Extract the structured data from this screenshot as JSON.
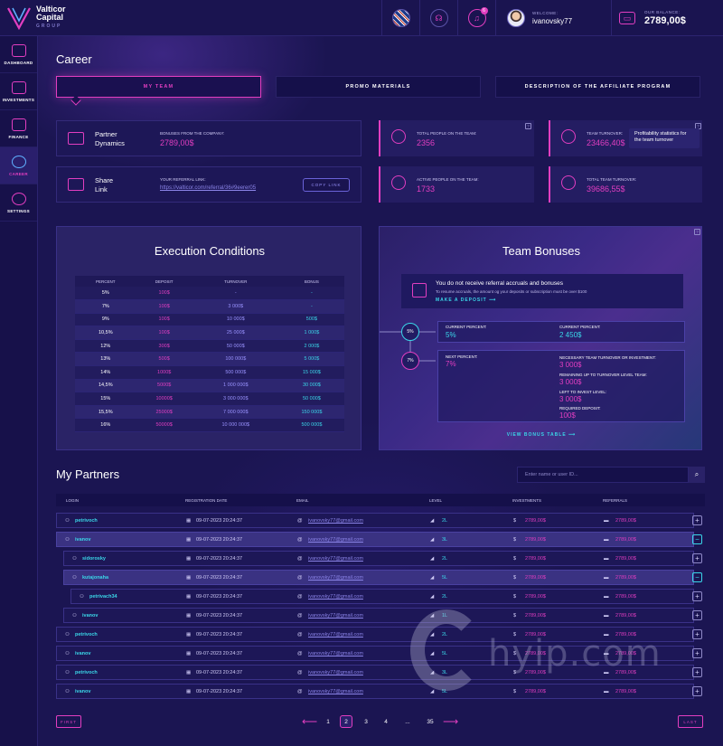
{
  "brand": {
    "name_line1": "Valticor",
    "name_line2": "Capital",
    "name_sub": "GROUP"
  },
  "topbar": {
    "notifications_count": "6",
    "welcome_label": "WELCOME:",
    "username": "ivanovsky77",
    "balance_label": "OUR BALANCE:",
    "balance_value": "2789,00$"
  },
  "sidebar": {
    "items": [
      {
        "label": "DASHBOARD",
        "icon": "dashboard-icon"
      },
      {
        "label": "INVESTMENTS",
        "icon": "investments-icon"
      },
      {
        "label": "FINANCE",
        "icon": "wallet-icon"
      },
      {
        "label": "CAREER",
        "icon": "career-icon",
        "active": true
      },
      {
        "label": "SETTINGS",
        "icon": "gear-icon"
      }
    ]
  },
  "page_title": "Career",
  "tabs": [
    {
      "label": "MY TEAM",
      "active": true
    },
    {
      "label": "PROMO MATERIALS"
    },
    {
      "label": "DESCRIPTION OF THE AFFILIATE PROGRAM"
    }
  ],
  "partner_dynamics": {
    "title_line1": "Partner",
    "title_line2": "Dynamics",
    "bonus_label": "BONUSES FROM THE COMPANY:",
    "bonus_value": "2789,00$"
  },
  "share_link": {
    "title_line1": "Share",
    "title_line2": "Link",
    "ref_label": "YOUR REFERRAL LINK:",
    "ref_url": "https://valticor.com/referral/36#9eerer05",
    "copy_label": "COPY LINK"
  },
  "stats": [
    {
      "label": "TOTAL PEOPLE ON THE TEAM:",
      "value": "2356"
    },
    {
      "label": "TEAM TURNOVER:",
      "value": "23466,40$"
    },
    {
      "label": "ACTIVE PEOPLE ON THE TEAM:",
      "value": "1733"
    },
    {
      "label": "TOTAL TEAM TURNOVER:",
      "value": "39686,55$"
    }
  ],
  "tooltip": "Profitability statistics for the team turnover",
  "help_mark": "?",
  "execution": {
    "title": "Execution Conditions",
    "columns": [
      "PERCENT",
      "DEPOSIT",
      "TURNOVER",
      "BONUS"
    ],
    "rows": [
      [
        "5%",
        "100$",
        "-",
        "-"
      ],
      [
        "7%",
        "100$",
        "3 000$",
        "-"
      ],
      [
        "9%",
        "100$",
        "10 000$",
        "500$"
      ],
      [
        "10,5%",
        "100$",
        "25 000$",
        "1 000$"
      ],
      [
        "12%",
        "300$",
        "50 000$",
        "2 000$"
      ],
      [
        "13%",
        "500$",
        "100 000$",
        "5 000$"
      ],
      [
        "14%",
        "1000$",
        "500 000$",
        "15 000$"
      ],
      [
        "14,5%",
        "5000$",
        "1 000 000$",
        "30 000$"
      ],
      [
        "15%",
        "10000$",
        "3 000 000$",
        "50 000$"
      ],
      [
        "15,5%",
        "25000$",
        "7 000 000$",
        "150 000$"
      ],
      [
        "16%",
        "50000$",
        "10 000 000$",
        "500 000$"
      ]
    ]
  },
  "team_bonuses": {
    "title": "Team Bonuses",
    "notice_main": "You do not receive referral accruals and bonuses",
    "notice_sub": "To resume accruals, the amount og your deposits or subscription must be over $100",
    "make_deposit": "MAKE A DEPOSIT",
    "current_circle": "5%",
    "next_circle": "7%",
    "current_label_1": "CURRENT PERCENT:",
    "current_value_1": "5%",
    "current_label_2": "CURRENT PERCENT:",
    "current_value_2": "2 450$",
    "next_label": "NEXT PERCENT:",
    "next_value": "7%",
    "necessary_label": "NECESSARY TEAM TURNOVER OR INVESTMENT:",
    "necessary_value": "3 000$",
    "remaining_label": "REMAINING UP TO TURNOVER LEVEL TEAM:",
    "remaining_value": "3 000$",
    "left_label": "LEFT TO INVEST LEVEL:",
    "left_value": "3 000$",
    "required_label": "REQUIRED DEPOSIT:",
    "required_value": "100$",
    "view_table": "VIEW BONUS TABLE"
  },
  "partners": {
    "title": "My Partners",
    "search_placeholder": "Enter name or user ID...",
    "columns": [
      "LOGIN",
      "REGISTRATION DATE",
      "EMAIL",
      "LEVEL",
      "INVESTMENTS",
      "REFERRALS"
    ],
    "rows": [
      {
        "login": "petrivoch",
        "date": "09-07-2023 20:24:37",
        "email": "ivanovsky77@gmail.com",
        "level": "2L",
        "investments": "2789,00$",
        "referrals": "2789,00$",
        "indent": 0,
        "highlight": false,
        "toggle": "+"
      },
      {
        "login": "ivanov",
        "date": "09-07-2023 20:24:37",
        "email": "ivanovsky77@gmail.com",
        "level": "3L",
        "investments": "2789,00$",
        "referrals": "2789,00$",
        "indent": 0,
        "highlight": true,
        "toggle": "−"
      },
      {
        "login": "sidorosky",
        "date": "09-07-2023 20:24:37",
        "email": "ivanovsky77@gmail.com",
        "level": "2L",
        "investments": "2789,00$",
        "referrals": "2789,00$",
        "indent": 1,
        "highlight": false,
        "toggle": "+"
      },
      {
        "login": "kutajonaha",
        "date": "09-07-2023 20:24:37",
        "email": "ivanovsky77@gmail.com",
        "level": "5L",
        "investments": "2789,00$",
        "referrals": "2789,00$",
        "indent": 1,
        "highlight": true,
        "toggle": "−"
      },
      {
        "login": "petrivach34",
        "date": "09-07-2023 20:24:37",
        "email": "ivanovsky77@gmail.com",
        "level": "2L",
        "investments": "2789,00$",
        "referrals": "2789,00$",
        "indent": 2,
        "highlight": false,
        "toggle": "+"
      },
      {
        "login": "ivanov",
        "date": "09-07-2023 20:24:37",
        "email": "ivanovsky77@gmail.com",
        "level": "1L",
        "investments": "2789,00$",
        "referrals": "2789,00$",
        "indent": 1,
        "highlight": false,
        "toggle": "+"
      },
      {
        "login": "petrivoch",
        "date": "09-07-2023 20:24:37",
        "email": "ivanovsky77@gmail.com",
        "level": "2L",
        "investments": "2789,00$",
        "referrals": "2789,00$",
        "indent": 0,
        "highlight": false,
        "toggle": "+"
      },
      {
        "login": "ivanov",
        "date": "09-07-2023 20:24:37",
        "email": "ivanovsky77@gmail.com",
        "level": "5L",
        "investments": "2789,00$",
        "referrals": "2789,00$",
        "indent": 0,
        "highlight": false,
        "toggle": "+"
      },
      {
        "login": "petrivoch",
        "date": "09-07-2023 20:24:37",
        "email": "ivanovsky77@gmail.com",
        "level": "3L",
        "investments": "2789,00$",
        "referrals": "2789,00$",
        "indent": 0,
        "highlight": false,
        "toggle": "+"
      },
      {
        "login": "ivanov",
        "date": "09-07-2023 20:24:37",
        "email": "ivanovsky77@gmail.com",
        "level": "5L",
        "investments": "2789,00$",
        "referrals": "2789,00$",
        "indent": 0,
        "highlight": false,
        "toggle": "+"
      }
    ]
  },
  "pagination": {
    "first": "FIRST",
    "last": "LAST",
    "pages": [
      "1",
      "2",
      "3",
      "4",
      "...",
      "35"
    ],
    "current": "2"
  },
  "watermark": "hyip.com",
  "colors": {
    "accent": "#e23ec0",
    "cyan": "#3ad6e8",
    "violet": "#9a93ff",
    "bg": "#1b1552"
  }
}
